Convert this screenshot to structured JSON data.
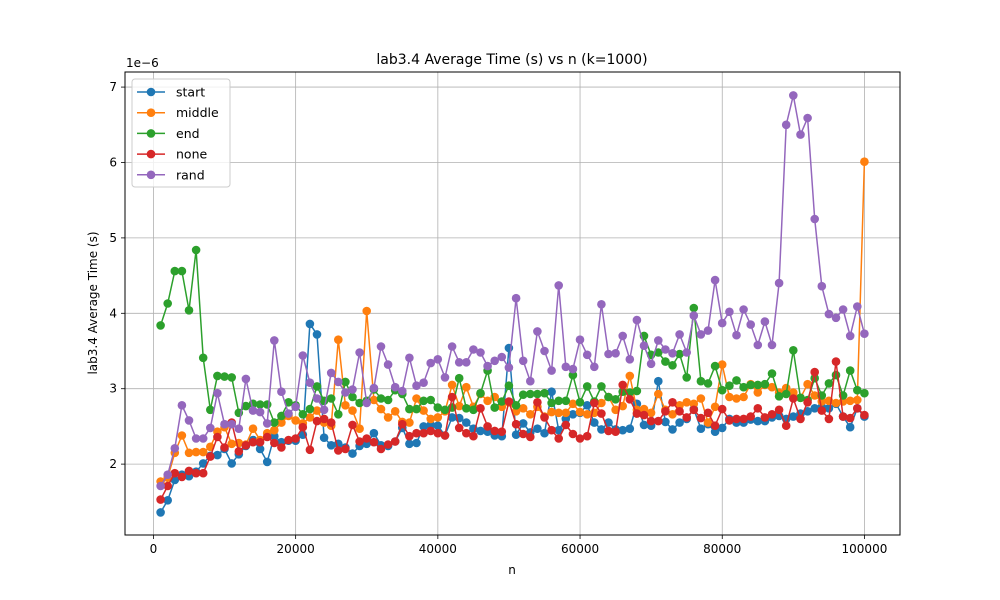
{
  "chart_data": {
    "type": "line",
    "title": "lab3.4 Average Time (s) vs n (k=1000)",
    "xlabel": "n",
    "ylabel": "lab3.4 Average Time (s)",
    "y_offset_label": "1e−6",
    "y_multiplier": 1e-06,
    "xlim": [
      -4000,
      105000
    ],
    "ylim": [
      1.06,
      7.2
    ],
    "xticks": [
      0,
      20000,
      40000,
      60000,
      80000,
      100000
    ],
    "xtick_labels": [
      "0",
      "20000",
      "40000",
      "60000",
      "80000",
      "100000"
    ],
    "yticks": [
      2,
      3,
      4,
      5,
      6,
      7
    ],
    "ytick_labels": [
      "2",
      "3",
      "4",
      "5",
      "6",
      "7"
    ],
    "grid": true,
    "legend_position": "upper left",
    "x_start": 1000,
    "x_step": 1000,
    "series": [
      {
        "name": "start",
        "color": "#1f77b4",
        "values": [
          1.36,
          1.52,
          1.79,
          1.86,
          1.84,
          1.9,
          2.01,
          2.11,
          2.12,
          2.2,
          2.01,
          2.13,
          2.24,
          2.32,
          2.2,
          2.03,
          2.37,
          2.29,
          2.31,
          2.31,
          2.39,
          3.86,
          3.72,
          2.35,
          2.25,
          2.27,
          2.22,
          2.14,
          2.24,
          2.27,
          2.41,
          2.25,
          2.24,
          2.3,
          2.48,
          2.27,
          2.28,
          2.5,
          2.52,
          2.51,
          2.38,
          2.62,
          2.61,
          2.55,
          2.47,
          2.44,
          2.43,
          2.38,
          2.37,
          3.54,
          2.39,
          2.54,
          2.42,
          2.47,
          2.41,
          2.96,
          2.45,
          2.6,
          2.66,
          2.68,
          2.78,
          2.55,
          2.46,
          2.55,
          2.46,
          2.45,
          2.47,
          2.8,
          2.52,
          2.51,
          3.1,
          2.56,
          2.46,
          2.55,
          2.6,
          2.73,
          2.47,
          2.53,
          2.43,
          2.48,
          2.6,
          2.55,
          2.55,
          2.59,
          2.57,
          2.57,
          2.62,
          2.64,
          2.6,
          2.63,
          2.67,
          2.7,
          2.74,
          2.76,
          2.74,
          2.8,
          2.63,
          2.49,
          2.74,
          2.63
        ]
      },
      {
        "name": "middle",
        "color": "#ff7f0e",
        "values": [
          1.77,
          1.82,
          2.15,
          2.38,
          2.15,
          2.16,
          2.16,
          2.23,
          2.43,
          2.49,
          2.27,
          2.28,
          2.26,
          2.47,
          2.32,
          2.41,
          2.45,
          2.55,
          2.64,
          2.58,
          2.54,
          2.62,
          2.71,
          2.55,
          2.51,
          3.65,
          2.78,
          2.71,
          2.47,
          4.03,
          2.85,
          2.73,
          2.62,
          2.7,
          2.56,
          2.55,
          2.87,
          2.71,
          2.6,
          2.62,
          2.7,
          3.05,
          2.77,
          3.02,
          2.76,
          2.93,
          2.84,
          2.89,
          2.76,
          2.82,
          2.7,
          2.74,
          2.66,
          2.76,
          2.63,
          2.69,
          2.68,
          2.68,
          2.8,
          2.69,
          2.66,
          2.68,
          2.81,
          2.89,
          2.72,
          2.77,
          3.17,
          2.72,
          2.73,
          2.68,
          2.93,
          2.72,
          2.66,
          2.78,
          2.82,
          2.8,
          2.87,
          2.55,
          2.76,
          3.32,
          2.89,
          2.87,
          2.89,
          3.06,
          2.95,
          3.05,
          3.02,
          2.95,
          3.01,
          2.95,
          2.88,
          3.06,
          2.91,
          2.83,
          2.84,
          2.81,
          2.83,
          2.84,
          2.85,
          6.01
        ]
      },
      {
        "name": "end",
        "color": "#2ca02c",
        "values": [
          3.84,
          4.13,
          4.56,
          4.56,
          4.04,
          4.84,
          3.41,
          2.72,
          3.17,
          3.16,
          3.15,
          2.68,
          2.77,
          2.8,
          2.79,
          2.79,
          2.55,
          2.64,
          2.82,
          2.78,
          2.66,
          2.73,
          3.03,
          2.84,
          2.87,
          2.66,
          3.09,
          2.89,
          2.81,
          2.84,
          2.99,
          2.87,
          2.85,
          2.98,
          2.93,
          2.73,
          2.73,
          2.84,
          2.85,
          2.75,
          2.72,
          2.75,
          3.14,
          2.74,
          2.72,
          2.94,
          3.24,
          2.75,
          2.83,
          3.04,
          2.78,
          2.92,
          2.93,
          2.93,
          2.94,
          2.81,
          2.84,
          2.84,
          3.18,
          2.82,
          3.03,
          2.83,
          3.03,
          2.89,
          2.86,
          2.96,
          2.95,
          2.97,
          3.7,
          3.45,
          3.48,
          3.36,
          3.31,
          3.46,
          3.15,
          4.07,
          3.1,
          3.07,
          3.3,
          2.98,
          3.04,
          3.11,
          3.02,
          3.05,
          3.05,
          3.06,
          3.2,
          2.9,
          2.93,
          3.51,
          2.88,
          2.85,
          3.14,
          2.91,
          3.07,
          3.18,
          2.91,
          3.24,
          2.98,
          2.94
        ]
      },
      {
        "name": "none",
        "color": "#d62728",
        "values": [
          1.53,
          1.71,
          1.88,
          1.83,
          1.91,
          1.88,
          1.88,
          2.1,
          2.36,
          2.22,
          2.55,
          2.17,
          2.25,
          2.29,
          2.29,
          2.36,
          2.28,
          2.22,
          2.32,
          2.34,
          2.49,
          2.19,
          2.57,
          2.6,
          2.55,
          2.18,
          2.2,
          2.52,
          2.3,
          2.34,
          2.29,
          2.2,
          2.26,
          2.3,
          2.53,
          2.37,
          2.41,
          2.41,
          2.44,
          2.41,
          2.38,
          2.89,
          2.48,
          2.41,
          2.37,
          2.74,
          2.5,
          2.44,
          2.43,
          2.83,
          2.53,
          2.4,
          2.36,
          2.82,
          2.62,
          2.45,
          2.34,
          2.52,
          2.4,
          2.34,
          2.37,
          2.81,
          2.67,
          2.44,
          2.43,
          3.05,
          2.86,
          2.67,
          2.65,
          2.57,
          2.57,
          2.7,
          2.82,
          2.7,
          2.62,
          2.72,
          2.61,
          2.68,
          2.51,
          2.73,
          2.58,
          2.6,
          2.6,
          2.63,
          2.74,
          2.62,
          2.66,
          2.72,
          2.51,
          2.87,
          2.6,
          2.82,
          3.22,
          2.71,
          2.6,
          3.36,
          2.63,
          2.61,
          2.74,
          2.65
        ]
      },
      {
        "name": "rand",
        "color": "#9467bd",
        "values": [
          1.71,
          1.86,
          2.21,
          2.78,
          2.58,
          2.34,
          2.34,
          2.48,
          2.94,
          2.53,
          2.53,
          2.47,
          3.13,
          2.71,
          2.69,
          2.54,
          3.64,
          2.96,
          2.67,
          2.76,
          3.44,
          3.08,
          2.87,
          2.72,
          3.21,
          3.09,
          2.95,
          2.99,
          3.48,
          2.81,
          3.01,
          3.56,
          3.32,
          3.02,
          2.97,
          3.41,
          3.04,
          3.08,
          3.34,
          3.39,
          3.15,
          3.56,
          3.35,
          3.35,
          3.52,
          3.48,
          3.3,
          3.37,
          3.42,
          3.28,
          4.2,
          3.37,
          3.1,
          3.76,
          3.5,
          3.24,
          4.37,
          3.29,
          3.26,
          3.65,
          3.45,
          3.29,
          4.12,
          3.46,
          3.47,
          3.7,
          3.39,
          3.91,
          3.57,
          3.33,
          3.64,
          3.52,
          3.47,
          3.72,
          3.48,
          3.97,
          3.72,
          3.77,
          4.44,
          3.87,
          4.02,
          3.71,
          4.05,
          3.85,
          3.58,
          3.89,
          3.58,
          4.4,
          6.5,
          6.89,
          6.37,
          6.59,
          5.25,
          4.36,
          3.99,
          3.94,
          4.05,
          3.7,
          4.09,
          3.73
        ]
      }
    ]
  }
}
